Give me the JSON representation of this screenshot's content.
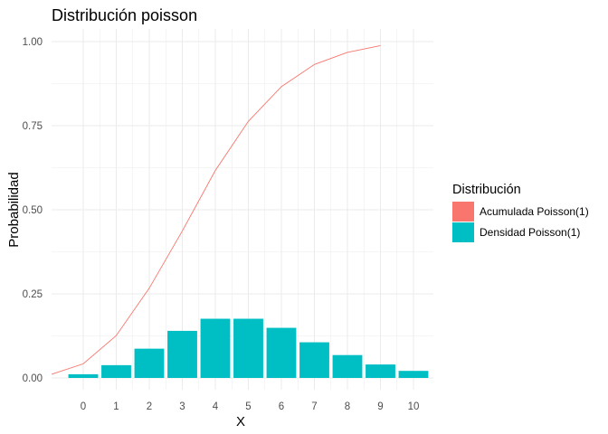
{
  "chart_data": {
    "type": "bar",
    "title": "Distribución poisson",
    "xlabel": "X",
    "ylabel": "Probabilidad",
    "x": [
      0,
      1,
      2,
      3,
      4,
      5,
      6,
      7,
      8,
      9,
      10
    ],
    "xticks": [
      "0",
      "1",
      "2",
      "3",
      "4",
      "5",
      "6",
      "7",
      "8",
      "9",
      "10"
    ],
    "yticks": [
      "0.00",
      "0.25",
      "0.50",
      "0.75",
      "1.00"
    ],
    "ylim": [
      0,
      1
    ],
    "grid": true,
    "legend": {
      "title": "Distribución",
      "position": "right"
    },
    "series": [
      {
        "name": "Densidad Poisson(1)",
        "type": "bar",
        "color": "#00BFC4",
        "values": [
          0.011,
          0.038,
          0.087,
          0.14,
          0.176,
          0.176,
          0.149,
          0.106,
          0.068,
          0.04,
          0.021
        ]
      },
      {
        "name": "Acumulada Poisson(1)",
        "type": "line",
        "color": "#F8766D",
        "x": [
          -1,
          0,
          1,
          2,
          3,
          4,
          5,
          6,
          7,
          8,
          9
        ],
        "values": [
          0.011,
          0.042,
          0.126,
          0.267,
          0.437,
          0.617,
          0.763,
          0.866,
          0.932,
          0.968,
          0.988
        ]
      }
    ]
  }
}
